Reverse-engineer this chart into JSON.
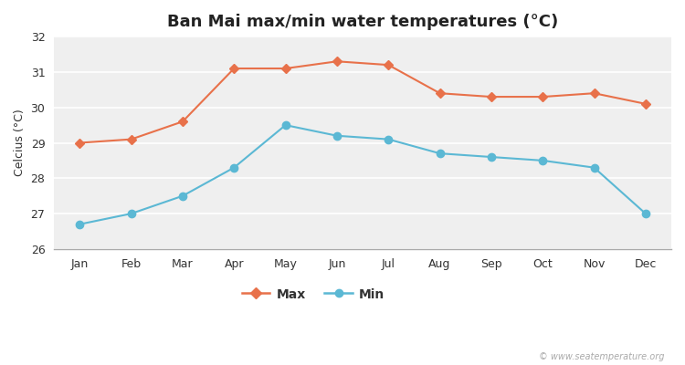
{
  "title": "Ban Mai max/min water temperatures (°C)",
  "ylabel": "Celcius (°C)",
  "months": [
    "Jan",
    "Feb",
    "Mar",
    "Apr",
    "May",
    "Jun",
    "Jul",
    "Aug",
    "Sep",
    "Oct",
    "Nov",
    "Dec"
  ],
  "max_temps": [
    29.0,
    29.1,
    29.6,
    31.1,
    31.1,
    31.3,
    31.2,
    30.4,
    30.3,
    30.3,
    30.4,
    30.1
  ],
  "min_temps": [
    26.7,
    27.0,
    27.5,
    28.3,
    29.5,
    29.2,
    29.1,
    28.7,
    28.6,
    28.5,
    28.3,
    27.0
  ],
  "max_color": "#e8714a",
  "min_color": "#5bb8d4",
  "ylim": [
    26.0,
    32.0
  ],
  "yticks": [
    26,
    27,
    28,
    29,
    30,
    31,
    32
  ],
  "figure_bg": "#ffffff",
  "plot_bg": "#efefef",
  "grid_color": "#ffffff",
  "title_fontsize": 13,
  "axis_label_fontsize": 9,
  "tick_fontsize": 9,
  "legend_labels": [
    "Max",
    "Min"
  ],
  "watermark": "© www.seatemperature.org"
}
